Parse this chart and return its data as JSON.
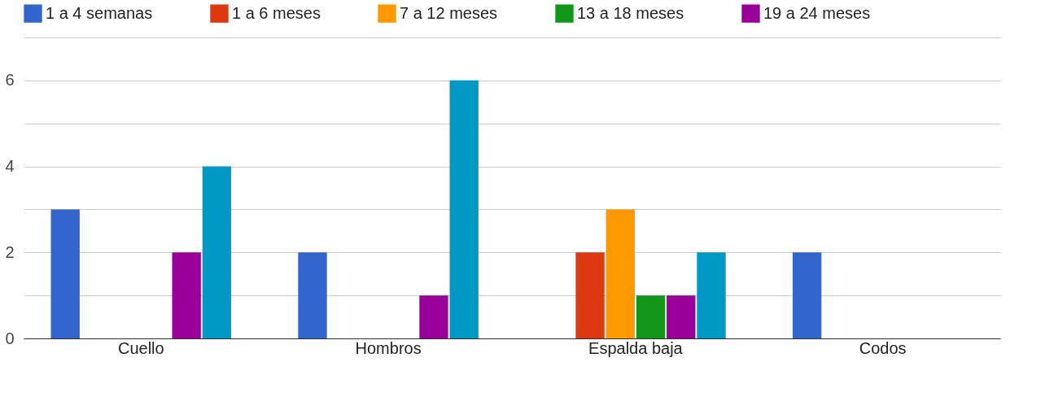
{
  "chart_data": {
    "type": "bar",
    "categories": [
      "Cuello",
      "Hombros",
      "Espalda baja",
      "Codos"
    ],
    "series": [
      {
        "name": "1 a 4 semanas",
        "color": "#3366cc",
        "values": [
          3,
          2,
          0,
          2
        ]
      },
      {
        "name": "1 a 6 meses",
        "color": "#dc3912",
        "values": [
          0,
          0,
          2,
          null
        ]
      },
      {
        "name": "7 a 12 meses",
        "color": "#ff9900",
        "values": [
          0,
          0,
          3,
          null
        ]
      },
      {
        "name": "13 a 18 meses",
        "color": "#109618",
        "values": [
          0,
          0,
          1,
          null
        ]
      },
      {
        "name": "19 a 24 meses",
        "color": "#990099",
        "values": [
          2,
          1,
          1,
          null
        ]
      },
      {
        "color": "#0099c6",
        "values": [
          4,
          6,
          2,
          null
        ]
      }
    ],
    "ylim": [
      0,
      7
    ],
    "yticks": [
      0,
      {
        "value": 1,
        "label": null
      },
      2,
      {
        "value": 3,
        "label": null
      },
      4,
      {
        "value": 5,
        "label": null
      },
      6,
      {
        "value": 7,
        "label": null
      }
    ],
    "grid": "y",
    "legend": "top"
  }
}
